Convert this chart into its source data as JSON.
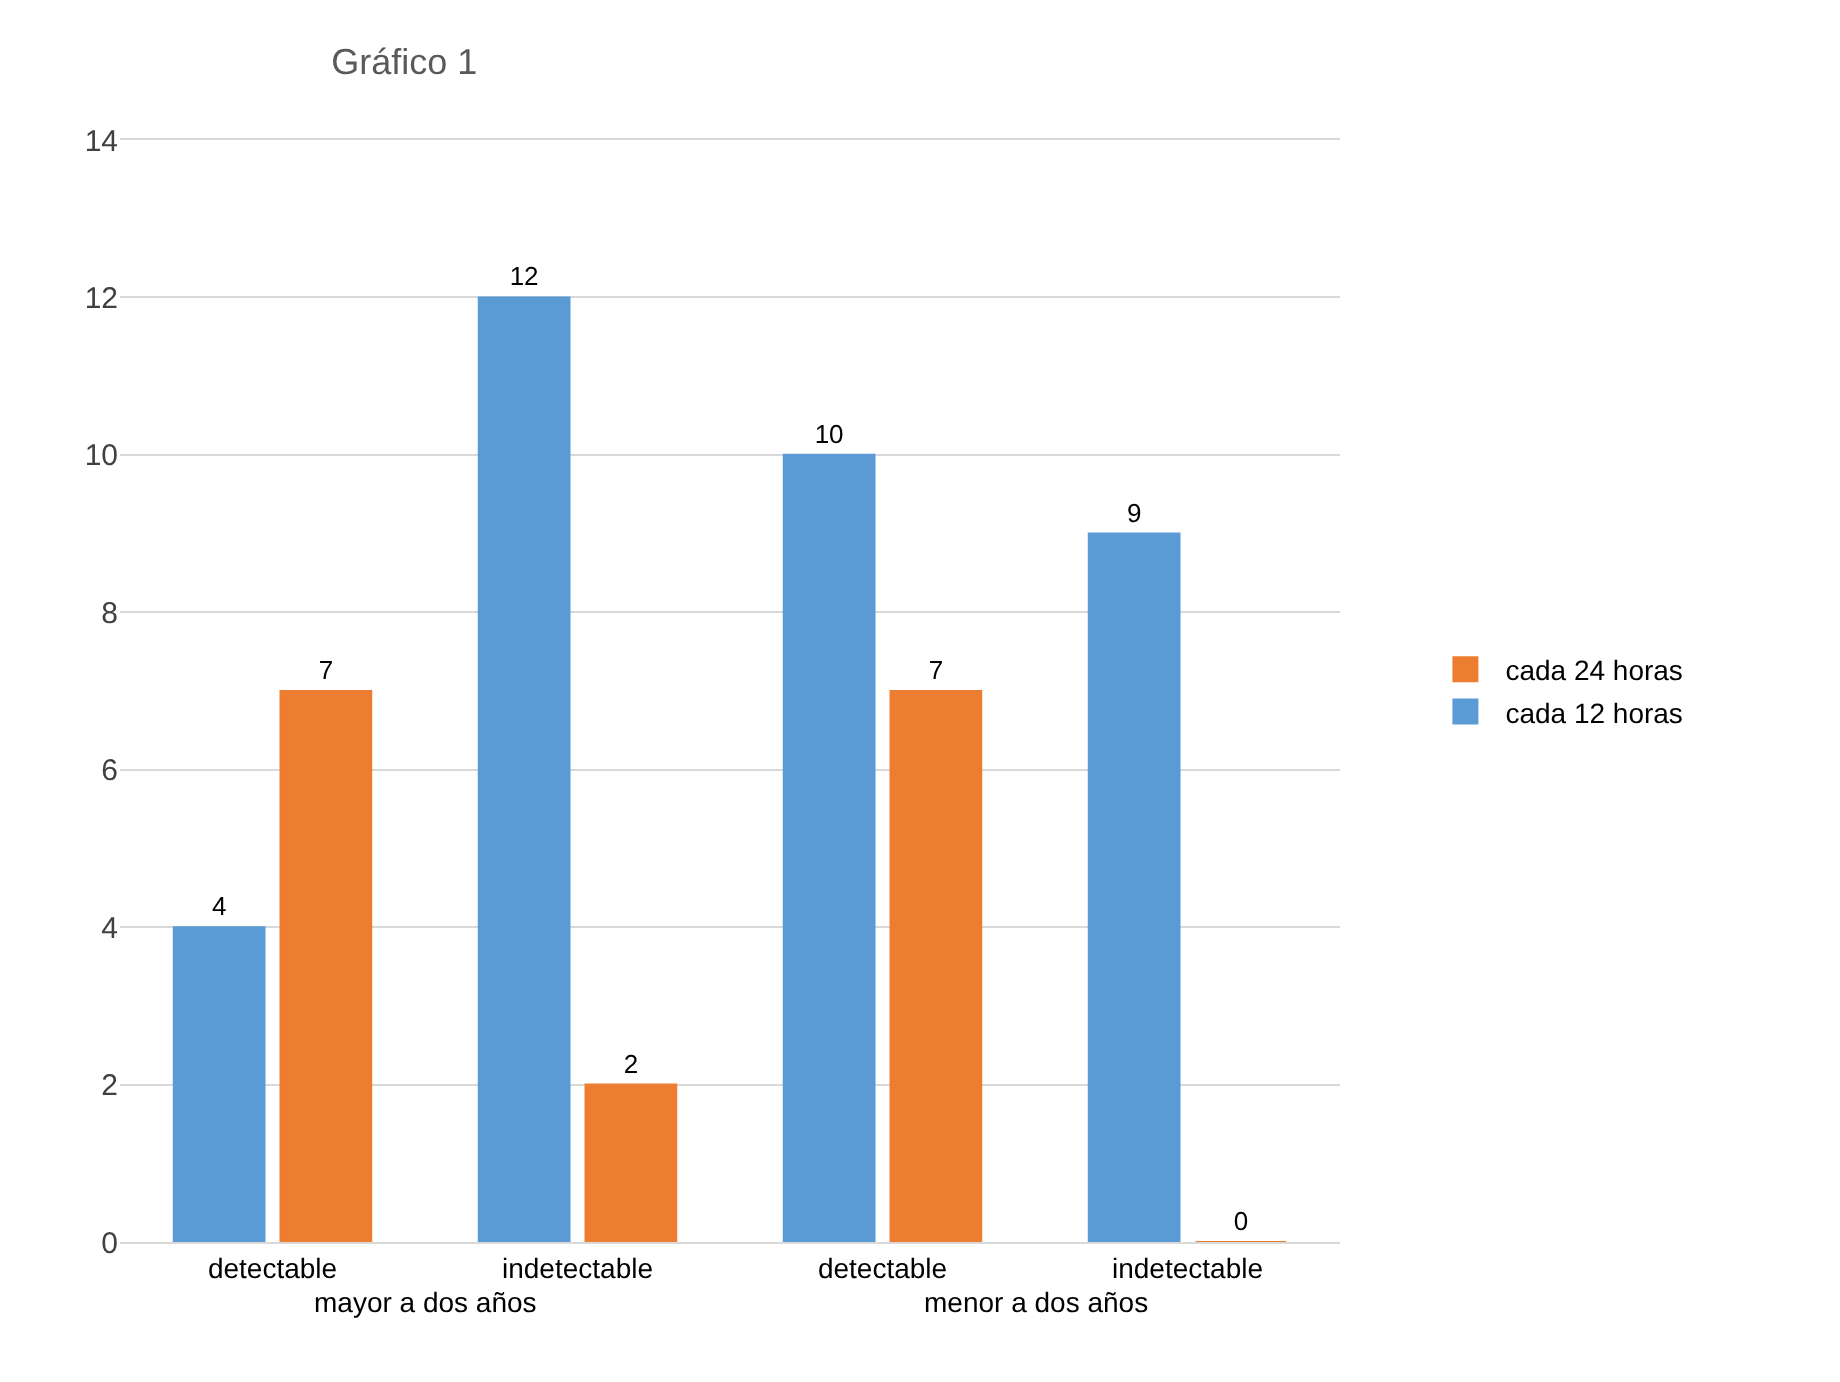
{
  "chart_data": {
    "type": "bar",
    "title": "Gráfico 1",
    "categories": [
      "detectable",
      "indetectable",
      "detectable",
      "indetectable"
    ],
    "series": [
      {
        "name": "cada 12 horas",
        "color": "#5b9bd5",
        "values": [
          4,
          12,
          10,
          9
        ]
      },
      {
        "name": "cada 24 horas",
        "color": "#ed7d31",
        "values": [
          7,
          2,
          7,
          0
        ]
      }
    ],
    "annotations": [
      {
        "text": "mayor a dos años"
      },
      {
        "text": "menor a dos años"
      }
    ],
    "ylim": [
      0,
      14
    ],
    "yticks": [
      0,
      2,
      4,
      6,
      8,
      10,
      12,
      14
    ],
    "grid": "y",
    "legend": "right",
    "data_labels": true
  }
}
